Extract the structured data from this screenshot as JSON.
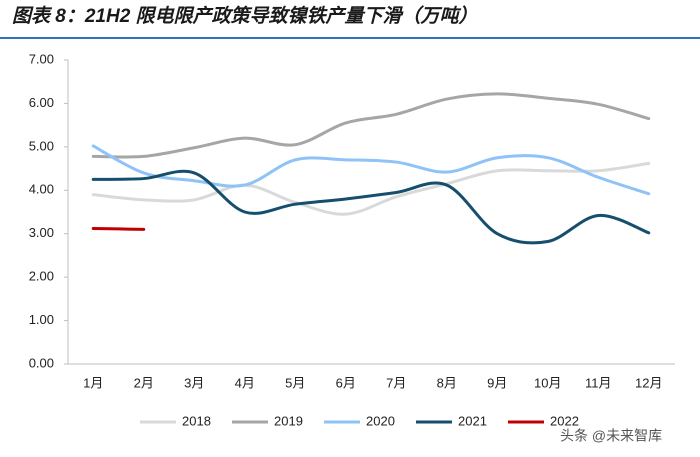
{
  "chart_data": {
    "type": "line",
    "title": "图表 8：21H2 限电限产政策导致镍铁产量下滑（万吨）",
    "categories": [
      "1月",
      "2月",
      "3月",
      "4月",
      "5月",
      "6月",
      "7月",
      "8月",
      "9月",
      "10月",
      "11月",
      "12月"
    ],
    "series": [
      {
        "name": "2018",
        "color": "#d9d9d9",
        "values": [
          3.9,
          3.78,
          3.78,
          4.12,
          3.72,
          3.45,
          3.85,
          4.15,
          4.45,
          4.45,
          4.45,
          4.62
        ]
      },
      {
        "name": "2019",
        "color": "#a6a6a6",
        "values": [
          4.78,
          4.78,
          4.98,
          5.2,
          5.05,
          5.55,
          5.75,
          6.1,
          6.22,
          6.12,
          5.98,
          5.65
        ]
      },
      {
        "name": "2020",
        "color": "#8fc3f7",
        "values": [
          5.02,
          4.4,
          4.22,
          4.12,
          4.7,
          4.7,
          4.65,
          4.42,
          4.75,
          4.75,
          4.3,
          3.92
        ]
      },
      {
        "name": "2021",
        "color": "#164e6e",
        "values": [
          4.25,
          4.27,
          4.4,
          3.5,
          3.68,
          3.8,
          3.95,
          4.12,
          3.0,
          2.82,
          3.42,
          3.02
        ]
      },
      {
        "name": "2022",
        "color": "#c00000",
        "values": [
          3.12,
          3.1,
          null,
          null,
          null,
          null,
          null,
          null,
          null,
          null,
          null,
          null
        ]
      }
    ],
    "ylim": [
      0,
      7
    ],
    "yticks": [
      {
        "value": 0,
        "label": "0.00"
      },
      {
        "value": 1,
        "label": "1.00"
      },
      {
        "value": 2,
        "label": "2.00"
      },
      {
        "value": 3,
        "label": "3.00"
      },
      {
        "value": 4,
        "label": "4.00"
      },
      {
        "value": 5,
        "label": "5.00"
      },
      {
        "value": 6,
        "label": "6.00"
      },
      {
        "value": 7,
        "label": "7.00"
      }
    ],
    "grid": false,
    "legend": "bottom",
    "watermark": "头条 @未来智库"
  }
}
